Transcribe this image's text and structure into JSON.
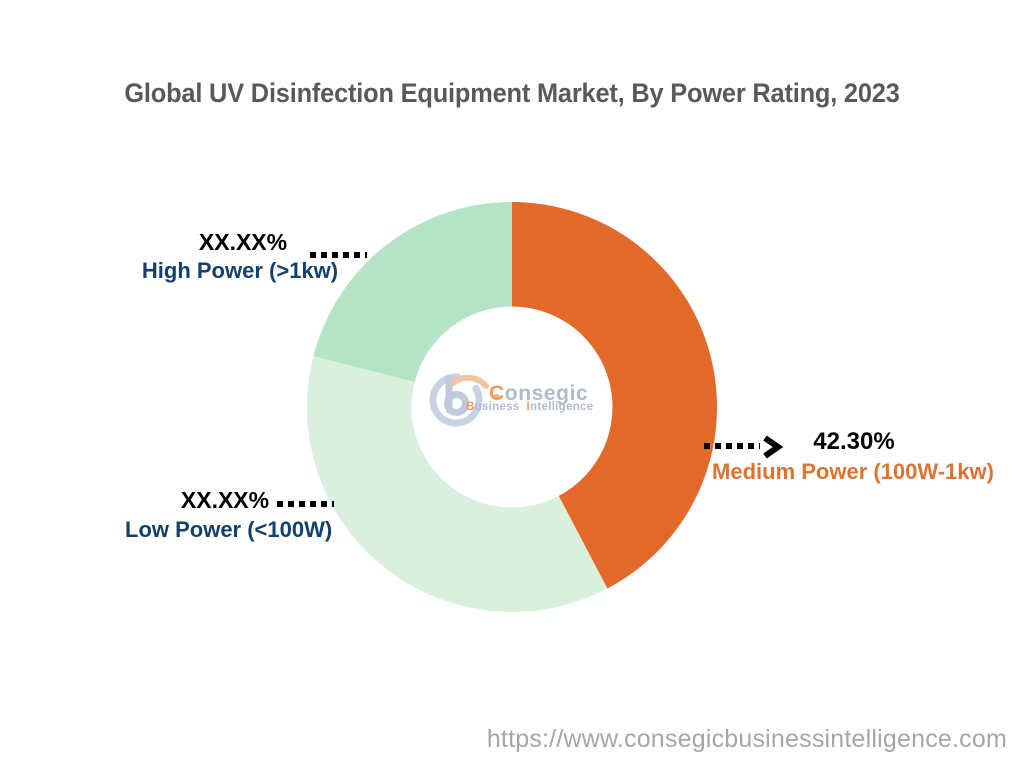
{
  "page": {
    "background": "#FFFFFF"
  },
  "chart_data": {
    "type": "donut",
    "title": "Global UV Disinfection Equipment Market, By Power Rating, 2023",
    "legend": "none",
    "start_angle_deg": 0,
    "direction": "clockwise",
    "hole_ratio": 0.49,
    "segments": [
      {
        "id": "medium-power",
        "label": "Medium Power (100W-1kw)",
        "display_value": "42.30%",
        "value_pct": 42.3,
        "color": "#E2692A",
        "label_color": "#DD7331"
      },
      {
        "id": "low-power",
        "label": "Low Power (<100W)",
        "display_value": "XX.XX%",
        "value_pct": 36.7,
        "color": "#D9F0DE",
        "label_color": "#15406B"
      },
      {
        "id": "high-power",
        "label": "High Power (>1kw)",
        "display_value": "XX.XX%",
        "value_pct": 21.0,
        "color": "#B5E3C5",
        "label_color": "#15406B"
      }
    ]
  },
  "logo": {
    "brand_initial": "C",
    "brand_rest": "onsegic",
    "tagline_initial_1": "B",
    "tagline_rest_1": "usiness",
    "tagline_initial_2": "I",
    "tagline_rest_2": "ntelligence",
    "accent_color": "#EE9B63",
    "text_color": "#AFBACB",
    "mark_blue": "#BDCBDC",
    "mark_ring": "#C7D3E2",
    "mark_orange": "#F2C4A1"
  },
  "footer": {
    "url": "https://www.consegicbusinessintelligence.com"
  },
  "colors": {
    "title": "#595959",
    "value_text": "#000000",
    "leader": "#000000",
    "url_text": "#A6A6A6"
  }
}
